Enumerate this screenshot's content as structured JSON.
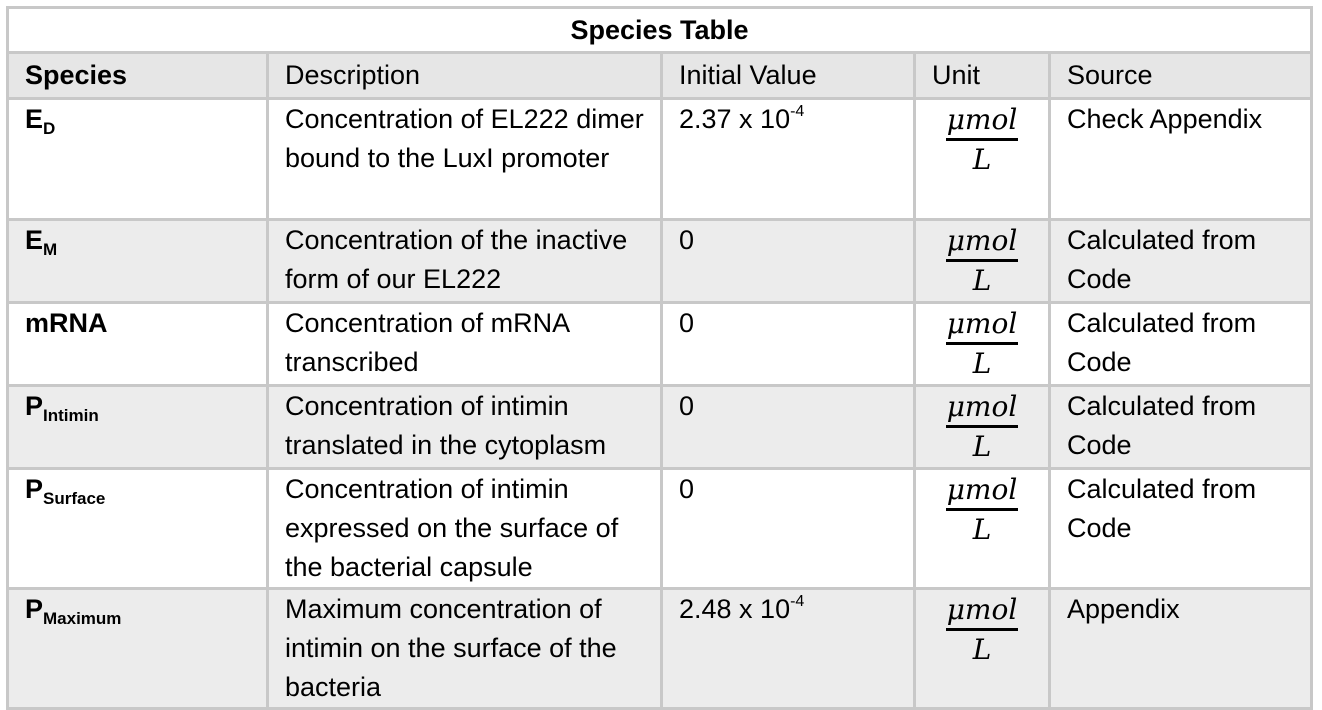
{
  "table": {
    "title": "Species Table",
    "headers": {
      "species": "Species",
      "description": "Description",
      "initial_value": "Initial Value",
      "unit": "Unit",
      "source": "Source"
    },
    "rows": [
      {
        "species_base": "E",
        "species_sub": "D",
        "description": "Concentration of EL222 dimer bound to the LuxI promoter",
        "value_base": "2.37 x 10",
        "value_exp": "-4",
        "unit_num": "μmol",
        "unit_den": "L",
        "source": "Check Appendix"
      },
      {
        "species_base": "E",
        "species_sub": "M",
        "description": "Concentration of the inactive form of our EL222",
        "value_base": "0",
        "value_exp": "",
        "unit_num": "μmol",
        "unit_den": "L",
        "source": "Calculated from Code"
      },
      {
        "species_base": "mRNA",
        "species_sub": "",
        "description": "Concentration of mRNA transcribed",
        "value_base": "0",
        "value_exp": "",
        "unit_num": "μmol",
        "unit_den": "L",
        "source": "Calculated from Code"
      },
      {
        "species_base": "P",
        "species_sub": "Intimin",
        "description": "Concentration of intimin translated in the cytoplasm",
        "value_base": "0",
        "value_exp": "",
        "unit_num": "μmol",
        "unit_den": "L",
        "source": "Calculated from Code"
      },
      {
        "species_base": "P",
        "species_sub": "Surface",
        "description": "Concentration of intimin expressed on the surface of the bacterial capsule",
        "value_base": "0",
        "value_exp": "",
        "unit_num": "μmol",
        "unit_den": "L",
        "source": "Calculated from Code"
      },
      {
        "species_base": "P",
        "species_sub": "Maximum",
        "description": "Maximum concentration of intimin on the surface of the bacteria",
        "value_base": "2.48 x 10",
        "value_exp": "-4",
        "unit_num": "μmol",
        "unit_den": "L",
        "source": "Appendix"
      }
    ]
  }
}
